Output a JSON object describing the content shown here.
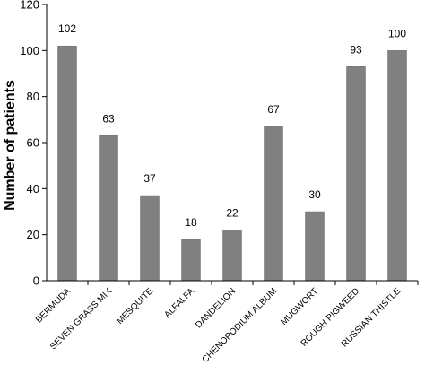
{
  "chart_data": {
    "type": "bar",
    "title": "",
    "xlabel": "",
    "ylabel": "Number of patients",
    "ylim": [
      0,
      120
    ],
    "yticks": [
      0,
      20,
      40,
      60,
      80,
      100,
      120
    ],
    "grid": false,
    "categories": [
      "BERMUDA",
      "SEVEN GRASS MIX",
      "MESQUITE",
      "ALFALFA",
      "DANDELION",
      "CHENOPODIUM ALBUM",
      "MUGWORT",
      "ROUGH PIGWEED",
      "RUSSIAN THISTLE"
    ],
    "values": [
      102,
      63,
      37,
      18,
      22,
      67,
      30,
      93,
      100
    ],
    "data_labels": [
      "102",
      "63",
      "37",
      "18",
      "22",
      "67",
      "30",
      "93",
      "100"
    ],
    "colors": {
      "bar": "#808080",
      "bar_edge": "#6e6e6e",
      "axis": "#000000"
    }
  }
}
